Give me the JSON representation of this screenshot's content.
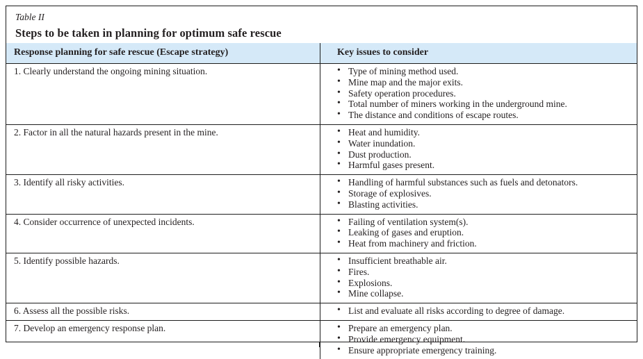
{
  "table": {
    "label": "Table II",
    "title": "Steps to be taken in planning for optimum safe rescue",
    "columns": [
      "Response planning for safe rescue (Escape strategy)",
      "Key issues to consider"
    ],
    "rows": [
      {
        "step": "1. Clearly understand the ongoing mining situation.",
        "issues": [
          "Type of mining method used.",
          "Mine map and the major exits.",
          "Safety operation procedures.",
          "Total number of miners working in the underground mine.",
          "The distance and conditions of escape routes."
        ]
      },
      {
        "step": "2. Factor in all the natural hazards present in the mine.",
        "issues": [
          "Heat and humidity.",
          "Water inundation.",
          "Dust production.",
          "Harmful gases present."
        ]
      },
      {
        "step": "3. Identify all risky activities.",
        "issues": [
          "Handling of harmful substances such as fuels and detonators.",
          "Storage of explosives.",
          "Blasting activities."
        ]
      },
      {
        "step": "4. Consider occurrence of unexpected incidents.",
        "issues": [
          "Failing of ventilation system(s).",
          "Leaking of gases and eruption.",
          "Heat from machinery and friction."
        ]
      },
      {
        "step": "5. Identify possible hazards.",
        "issues": [
          "Insufficient breathable air.",
          "Fires.",
          "Explosions.",
          "Mine collapse."
        ]
      },
      {
        "step": "6. Assess all the possible risks.",
        "issues": [
          "List and evaluate all risks according to degree of damage."
        ]
      },
      {
        "step": "7. Develop an emergency response plan.",
        "issues": [
          "Prepare an emergency plan.",
          "Provide emergency equipment.",
          "Ensure appropriate emergency training."
        ]
      }
    ],
    "colors": {
      "header_bg": "#d5e9f8",
      "border": "#1c1c1c",
      "text": "#231f20"
    }
  }
}
